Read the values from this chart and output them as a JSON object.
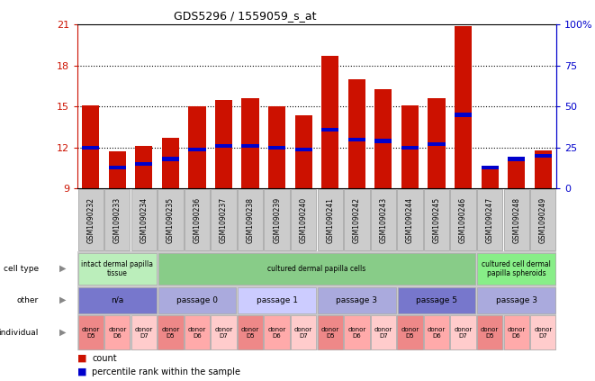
{
  "title": "GDS5296 / 1559059_s_at",
  "samples": [
    "GSM1090232",
    "GSM1090233",
    "GSM1090234",
    "GSM1090235",
    "GSM1090236",
    "GSM1090237",
    "GSM1090238",
    "GSM1090239",
    "GSM1090240",
    "GSM1090241",
    "GSM1090242",
    "GSM1090243",
    "GSM1090244",
    "GSM1090245",
    "GSM1090246",
    "GSM1090247",
    "GSM1090248",
    "GSM1090249"
  ],
  "counts": [
    15.1,
    11.7,
    12.1,
    12.7,
    15.0,
    15.5,
    15.6,
    15.0,
    14.4,
    18.7,
    17.0,
    16.3,
    15.1,
    15.6,
    20.9,
    10.5,
    11.2,
    11.8
  ],
  "percentile_ranks": [
    25,
    13,
    15,
    18,
    24,
    26,
    26,
    25,
    24,
    36,
    30,
    29,
    25,
    27,
    45,
    13,
    18,
    20
  ],
  "ymin": 9,
  "ymax": 21,
  "yticks": [
    9,
    12,
    15,
    18,
    21
  ],
  "right_yticks": [
    0,
    25,
    50,
    75,
    100
  ],
  "bar_color": "#cc1100",
  "marker_color": "#0000cc",
  "bg_color": "#ffffff",
  "cell_type_groups": [
    {
      "label": "intact dermal papilla\ntissue",
      "start": 0,
      "end": 3,
      "color": "#bbeebb"
    },
    {
      "label": "cultured dermal papilla cells",
      "start": 3,
      "end": 15,
      "color": "#88cc88"
    },
    {
      "label": "cultured cell dermal\npapilla spheroids",
      "start": 15,
      "end": 18,
      "color": "#88ee88"
    }
  ],
  "other_groups": [
    {
      "label": "n/a",
      "start": 0,
      "end": 3,
      "color": "#7777cc"
    },
    {
      "label": "passage 0",
      "start": 3,
      "end": 6,
      "color": "#aaaadd"
    },
    {
      "label": "passage 1",
      "start": 6,
      "end": 9,
      "color": "#ccccff"
    },
    {
      "label": "passage 3",
      "start": 9,
      "end": 12,
      "color": "#aaaadd"
    },
    {
      "label": "passage 5",
      "start": 12,
      "end": 15,
      "color": "#7777cc"
    },
    {
      "label": "passage 3",
      "start": 15,
      "end": 18,
      "color": "#aaaadd"
    }
  ],
  "individual_groups": [
    {
      "label": "donor\nD5",
      "start": 0,
      "end": 1,
      "color": "#ee8888"
    },
    {
      "label": "donor\nD6",
      "start": 1,
      "end": 2,
      "color": "#ffaaaa"
    },
    {
      "label": "donor\nD7",
      "start": 2,
      "end": 3,
      "color": "#ffcccc"
    },
    {
      "label": "donor\nD5",
      "start": 3,
      "end": 4,
      "color": "#ee8888"
    },
    {
      "label": "donor\nD6",
      "start": 4,
      "end": 5,
      "color": "#ffaaaa"
    },
    {
      "label": "donor\nD7",
      "start": 5,
      "end": 6,
      "color": "#ffcccc"
    },
    {
      "label": "donor\nD5",
      "start": 6,
      "end": 7,
      "color": "#ee8888"
    },
    {
      "label": "donor\nD6",
      "start": 7,
      "end": 8,
      "color": "#ffaaaa"
    },
    {
      "label": "donor\nD7",
      "start": 8,
      "end": 9,
      "color": "#ffcccc"
    },
    {
      "label": "donor\nD5",
      "start": 9,
      "end": 10,
      "color": "#ee8888"
    },
    {
      "label": "donor\nD6",
      "start": 10,
      "end": 11,
      "color": "#ffaaaa"
    },
    {
      "label": "donor\nD7",
      "start": 11,
      "end": 12,
      "color": "#ffcccc"
    },
    {
      "label": "donor\nD5",
      "start": 12,
      "end": 13,
      "color": "#ee8888"
    },
    {
      "label": "donor\nD6",
      "start": 13,
      "end": 14,
      "color": "#ffaaaa"
    },
    {
      "label": "donor\nD7",
      "start": 14,
      "end": 15,
      "color": "#ffcccc"
    },
    {
      "label": "donor\nD5",
      "start": 15,
      "end": 16,
      "color": "#ee8888"
    },
    {
      "label": "donor\nD6",
      "start": 16,
      "end": 17,
      "color": "#ffaaaa"
    },
    {
      "label": "donor\nD7",
      "start": 17,
      "end": 18,
      "color": "#ffcccc"
    }
  ],
  "row_labels": [
    "cell type",
    "other",
    "individual"
  ],
  "legend_count": "count",
  "legend_percentile": "percentile rank within the sample"
}
